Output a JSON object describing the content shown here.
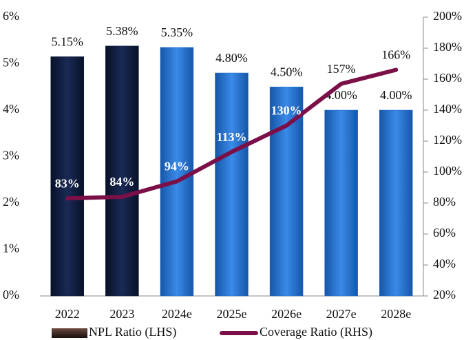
{
  "chart_data": {
    "type": "bar-line",
    "categories": [
      "2022",
      "2023",
      "2024e",
      "2025e",
      "2026e",
      "2027e",
      "2028e"
    ],
    "series": [
      {
        "name": "NPL Ratio (LHS)",
        "color": "#1f6fd0",
        "colors": [
          "#0d1a3a",
          "#0d1a3a",
          "#1f6fd0",
          "#1f6fd0",
          "#1f6fd0",
          "#1f6fd0",
          "#1f6fd0"
        ],
        "values": [
          5.15,
          5.38,
          5.35,
          4.8,
          4.5,
          4.0,
          4.0
        ],
        "value_labels": [
          "5.15%",
          "5.38%",
          "5.35%",
          "4.80%",
          "4.50%",
          "4.00%",
          "4.00%"
        ]
      },
      {
        "name": "Coverage Ratio (RHS)",
        "color": "#7b1048",
        "axis": "y2",
        "values": [
          83,
          84,
          94,
          113,
          130,
          157,
          166
        ],
        "value_labels": [
          "83%",
          "84%",
          "94%",
          "113%",
          "130%",
          "157%",
          "166%"
        ]
      }
    ],
    "ylim": [
      0,
      6
    ],
    "yticks": [
      {
        "value": 0,
        "label": "0%"
      },
      {
        "value": 1,
        "label": "1%"
      },
      {
        "value": 2,
        "label": "2%"
      },
      {
        "value": 3,
        "label": "3%"
      },
      {
        "value": 4,
        "label": "4%"
      },
      {
        "value": 5,
        "label": "5%"
      },
      {
        "value": 6,
        "label": "6%"
      }
    ],
    "y2lim": [
      20,
      200
    ],
    "y2ticks": [
      {
        "value": 20,
        "label": "20%"
      },
      {
        "value": 40,
        "label": "40%"
      },
      {
        "value": 60,
        "label": "60%"
      },
      {
        "value": 80,
        "label": "80%"
      },
      {
        "value": 100,
        "label": "100%"
      },
      {
        "value": 120,
        "label": "120%"
      },
      {
        "value": 140,
        "label": "140%"
      },
      {
        "value": 160,
        "label": "160%"
      },
      {
        "value": 180,
        "label": "180%"
      },
      {
        "value": 200,
        "label": "200%"
      }
    ],
    "legend": "bottom"
  }
}
